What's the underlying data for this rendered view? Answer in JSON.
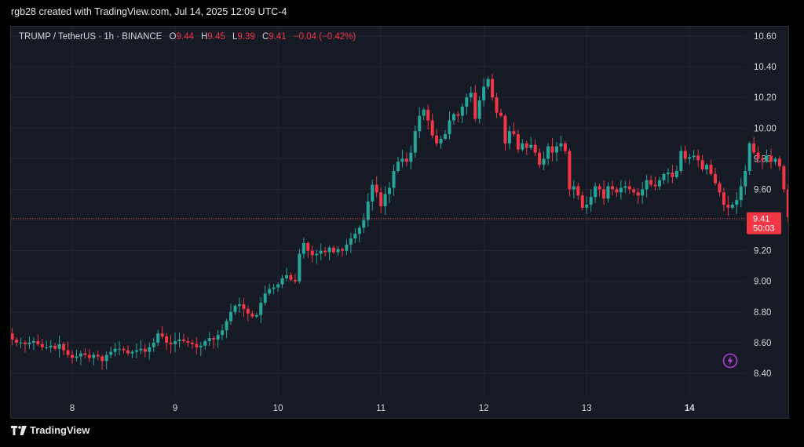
{
  "caption": "rgb28 created with TradingView.com, Jul 14, 2025 12:09 UTC-4",
  "legend": {
    "symbol": "TRUMP / TetherUS · 1h · BINANCE",
    "o_key": "O",
    "o_val": "9.44",
    "h_key": "H",
    "h_val": "9.45",
    "l_key": "L",
    "l_val": "9.39",
    "c_key": "C",
    "c_val": "9.41",
    "change": "−0.04 (−0.42%)"
  },
  "price_tag": {
    "price": "9.41",
    "countdown": "50:03"
  },
  "footer": {
    "brand": "TradingView"
  },
  "icons": {
    "logo": "tradingview-logo-icon",
    "alert": "lightning-icon"
  },
  "colors": {
    "up": "#26a69a",
    "down": "#f23645",
    "background": "#161a25",
    "grid": "#232632"
  },
  "chart_data": {
    "type": "candlestick",
    "title": "",
    "ylim": [
      8.3,
      10.65
    ],
    "y_ticks": [
      "10.60",
      "10.40",
      "10.20",
      "10.00",
      "9.80",
      "9.60",
      "9.40",
      "9.20",
      "9.00",
      "8.80",
      "8.60",
      "8.40"
    ],
    "x_ticks": [
      {
        "label": "8",
        "hour": 0
      },
      {
        "label": "9",
        "hour": 24
      },
      {
        "label": "10",
        "hour": 48
      },
      {
        "label": "11",
        "hour": 72
      },
      {
        "label": "12",
        "hour": 96
      },
      {
        "label": "13",
        "hour": 120
      },
      {
        "label": "14",
        "hour": 144
      }
    ],
    "last_price": 9.41,
    "hour_range": [
      -14,
      160
    ],
    "close_series_start_hour": -14,
    "closes": [
      8.62,
      8.6,
      8.6,
      8.59,
      8.6,
      8.61,
      8.59,
      8.57,
      8.57,
      8.58,
      8.56,
      8.59,
      8.55,
      8.52,
      8.5,
      8.51,
      8.53,
      8.52,
      8.5,
      8.52,
      8.51,
      8.48,
      8.52,
      8.54,
      8.56,
      8.56,
      8.55,
      8.53,
      8.54,
      8.55,
      8.56,
      8.54,
      8.57,
      8.6,
      8.66,
      8.64,
      8.6,
      8.59,
      8.61,
      8.62,
      8.61,
      8.6,
      8.59,
      8.57,
      8.58,
      8.61,
      8.63,
      8.62,
      8.65,
      8.68,
      8.74,
      8.8,
      8.84,
      8.85,
      8.82,
      8.79,
      8.77,
      8.78,
      8.86,
      8.92,
      8.95,
      8.96,
      8.98,
      9.02,
      9.04,
      9.01,
      9.0,
      9.18,
      9.25,
      9.2,
      9.17,
      9.18,
      9.2,
      9.19,
      9.22,
      9.19,
      9.21,
      9.2,
      9.24,
      9.28,
      9.31,
      9.35,
      9.4,
      9.52,
      9.63,
      9.58,
      9.49,
      9.57,
      9.61,
      9.72,
      9.78,
      9.8,
      9.78,
      9.84,
      9.98,
      10.08,
      10.12,
      10.05,
      9.95,
      9.9,
      9.93,
      9.96,
      10.05,
      10.09,
      10.08,
      10.14,
      10.2,
      10.23,
      10.06,
      10.18,
      10.27,
      10.32,
      10.2,
      10.1,
      10.08,
      9.9,
      9.98,
      9.96,
      9.86,
      9.9,
      9.87,
      9.89,
      9.84,
      9.76,
      9.8,
      9.88,
      9.84,
      9.88,
      9.9,
      9.85,
      9.6,
      9.62,
      9.56,
      9.48,
      9.5,
      9.55,
      9.62,
      9.6,
      9.54,
      9.62,
      9.6,
      9.58,
      9.61,
      9.62,
      9.6,
      9.58,
      9.56,
      9.6,
      9.66,
      9.63,
      9.62,
      9.66,
      9.7,
      9.71,
      9.68,
      9.72,
      9.85,
      9.8,
      9.81,
      9.82,
      9.79,
      9.73,
      9.76,
      9.7,
      9.64,
      9.58,
      9.5,
      9.48,
      9.5,
      9.53,
      9.62,
      9.72,
      9.9,
      9.84,
      9.8,
      9.79,
      9.82,
      9.78,
      9.8,
      9.75,
      9.6,
      9.42,
      9.41
    ]
  }
}
